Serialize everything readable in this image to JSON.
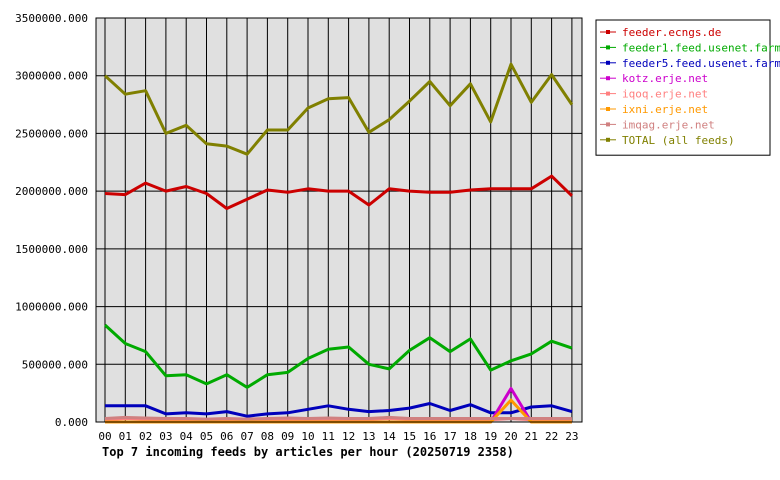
{
  "chart_data": {
    "type": "line",
    "title": "Top 7 incoming feeds by articles per hour (20250719 2358)",
    "xlabel": "",
    "ylabel": "",
    "grid": true,
    "legend_position": "top-right",
    "ylim": [
      0,
      3500000
    ],
    "y_ticks": [
      "0.000",
      "500000.000",
      "1000000.000",
      "1500000.000",
      "2000000.000",
      "2500000.000",
      "3000000.000",
      "3500000.000"
    ],
    "categories": [
      "00",
      "01",
      "02",
      "03",
      "04",
      "05",
      "06",
      "07",
      "08",
      "09",
      "10",
      "11",
      "12",
      "13",
      "14",
      "15",
      "16",
      "17",
      "18",
      "19",
      "20",
      "21",
      "22",
      "23"
    ],
    "series": [
      {
        "name": "feeder.ecngs.de",
        "color": "#cc0000",
        "values": [
          1980000,
          1970000,
          2070000,
          2000000,
          2040000,
          1980000,
          1850000,
          1930000,
          2010000,
          1990000,
          2020000,
          2000000,
          2000000,
          1880000,
          2020000,
          2000000,
          1990000,
          1990000,
          2010000,
          2020000,
          2020000,
          2020000,
          2130000,
          1960000
        ]
      },
      {
        "name": "feeder1.feed.usenet.farm",
        "color": "#00aa00",
        "values": [
          840000,
          680000,
          610000,
          400000,
          410000,
          330000,
          410000,
          300000,
          410000,
          430000,
          550000,
          630000,
          650000,
          500000,
          460000,
          620000,
          730000,
          610000,
          720000,
          450000,
          530000,
          590000,
          700000,
          640000
        ]
      },
      {
        "name": "feeder5.feed.usenet.farm",
        "color": "#0000bb",
        "values": [
          140000,
          140000,
          140000,
          70000,
          80000,
          70000,
          90000,
          50000,
          70000,
          80000,
          110000,
          140000,
          110000,
          90000,
          100000,
          120000,
          160000,
          100000,
          150000,
          80000,
          80000,
          130000,
          140000,
          90000
        ]
      },
      {
        "name": "kotz.erje.net",
        "color": "#cc00cc",
        "values": [
          0,
          0,
          0,
          0,
          0,
          0,
          0,
          0,
          0,
          0,
          0,
          0,
          0,
          0,
          0,
          0,
          0,
          0,
          0,
          0,
          290000,
          0,
          0,
          0
        ]
      },
      {
        "name": "iqoq.erje.net",
        "color": "#ff8080",
        "values": [
          20000,
          30000,
          25000,
          20000,
          25000,
          20000,
          25000,
          20000,
          20000,
          25000,
          25000,
          25000,
          20000,
          25000,
          30000,
          25000,
          25000,
          20000,
          25000,
          20000,
          30000,
          20000,
          25000,
          20000
        ]
      },
      {
        "name": "ixni.erje.net",
        "color": "#ff9900",
        "values": [
          0,
          0,
          0,
          0,
          0,
          0,
          0,
          0,
          0,
          0,
          0,
          0,
          0,
          0,
          0,
          0,
          0,
          0,
          0,
          0,
          190000,
          0,
          0,
          0
        ]
      },
      {
        "name": "imqag.erje.net",
        "color": "#d08080",
        "values": [
          30000,
          40000,
          35000,
          30000,
          30000,
          25000,
          30000,
          25000,
          30000,
          35000,
          30000,
          35000,
          30000,
          30000,
          40000,
          30000,
          30000,
          30000,
          30000,
          30000,
          30000,
          30000,
          30000,
          30000
        ]
      },
      {
        "name": "TOTAL (all feeds)",
        "color": "#808000",
        "values": [
          3000000,
          2840000,
          2870000,
          2500000,
          2570000,
          2410000,
          2390000,
          2320000,
          2530000,
          2530000,
          2720000,
          2800000,
          2810000,
          2510000,
          2620000,
          2780000,
          2950000,
          2740000,
          2930000,
          2600000,
          3100000,
          2770000,
          3010000,
          2750000
        ]
      }
    ]
  }
}
